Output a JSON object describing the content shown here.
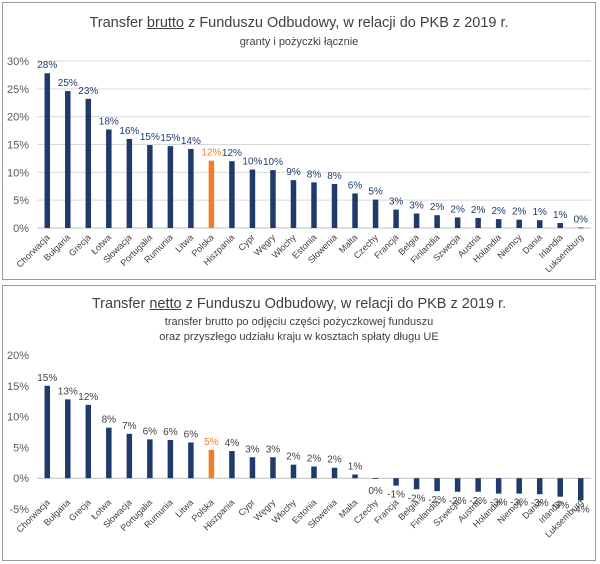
{
  "colors": {
    "bar": "#1f3a6b",
    "highlight": "#f07d29",
    "label": "#1f3a6b",
    "grid": "#d9d9d9",
    "axis_text": "#595959"
  },
  "chart_data": [
    {
      "type": "bar",
      "title_pre": "Transfer ",
      "title_em": "brutto",
      "title_post": " z Funduszu Odbudowy, w relacji do PKB z 2019 r.",
      "subtitle_lines": [
        "granty i pożyczki łącznie"
      ],
      "ylim": [
        0,
        30
      ],
      "yticks": [
        "0%",
        "5%",
        "10%",
        "15%",
        "20%",
        "25%",
        "30%"
      ],
      "grid": true,
      "categories": [
        "Chorwacja",
        "Bułgaria",
        "Grecja",
        "Łotwa",
        "Słowacja",
        "Portugalia",
        "Rumunia",
        "Litwa",
        "Polska",
        "Hiszpania",
        "Cypr",
        "Węgry",
        "Włochy",
        "Estonia",
        "Słowenia",
        "Malta",
        "Czechy",
        "Francja",
        "Belgia",
        "Finlandia",
        "Szwecja",
        "Austria",
        "Holandia",
        "Niemcy",
        "Dania",
        "Irlandia",
        "Luksemburg"
      ],
      "values": [
        27.8,
        24.6,
        23.2,
        17.7,
        16.0,
        14.9,
        14.7,
        14.2,
        12.1,
        12.0,
        10.5,
        10.4,
        8.6,
        8.2,
        7.9,
        6.2,
        5.1,
        3.3,
        2.6,
        2.3,
        1.9,
        1.8,
        1.6,
        1.5,
        1.4,
        0.9,
        0.1
      ],
      "data_labels": [
        "28%",
        "25%",
        "23%",
        "18%",
        "16%",
        "15%",
        "15%",
        "14%",
        "12%",
        "12%",
        "10%",
        "10%",
        "9%",
        "8%",
        "8%",
        "6%",
        "5%",
        "3%",
        "3%",
        "2%",
        "2%",
        "2%",
        "2%",
        "2%",
        "1%",
        "1%",
        "0%"
      ],
      "highlight": "Polska"
    },
    {
      "type": "bar",
      "title_pre": "Transfer ",
      "title_em": "netto",
      "title_post": " z Funduszu Odbudowy, w relacji do PKB z 2019 r.",
      "subtitle_lines": [
        "transfer brutto po odjęciu części pożyczkowej funduszu",
        "oraz przyszłego udziału kraju w kosztach spłaty długu UE"
      ],
      "ylim": [
        -5,
        20
      ],
      "yticks": [
        "-5%",
        "0%",
        "5%",
        "10%",
        "15%",
        "20%"
      ],
      "grid": false,
      "categories": [
        "Chorwacja",
        "Bułgaria",
        "Grecja",
        "Łotwa",
        "Słowacja",
        "Portugalia",
        "Rumunia",
        "Litwa",
        "Polska",
        "Hiszpania",
        "Cypr",
        "Węgry",
        "Włochy",
        "Estonia",
        "Słowenia",
        "Malta",
        "Czechy",
        "Francja",
        "Belgia",
        "Finlandia",
        "Szwecja",
        "Austria",
        "Holandia",
        "Niemcy",
        "Dania",
        "Irlandia",
        "Luksemburg"
      ],
      "values": [
        15.0,
        12.8,
        11.9,
        8.2,
        7.2,
        6.3,
        6.2,
        5.8,
        4.6,
        4.4,
        3.4,
        3.4,
        2.2,
        1.9,
        1.7,
        0.6,
        -0.1,
        -1.2,
        -1.8,
        -2.1,
        -2.2,
        -2.2,
        -2.5,
        -2.5,
        -2.6,
        -3.0,
        -3.6
      ],
      "data_labels": [
        "15%",
        "13%",
        "12%",
        "8%",
        "7%",
        "6%",
        "6%",
        "6%",
        "5%",
        "4%",
        "3%",
        "3%",
        "2%",
        "2%",
        "2%",
        "1%",
        "0%",
        "-1%",
        "-2%",
        "-2%",
        "-2%",
        "-2%",
        "-3%",
        "-3%",
        "-3%",
        "-3%",
        "-4%"
      ],
      "highlight": "Polska"
    }
  ]
}
